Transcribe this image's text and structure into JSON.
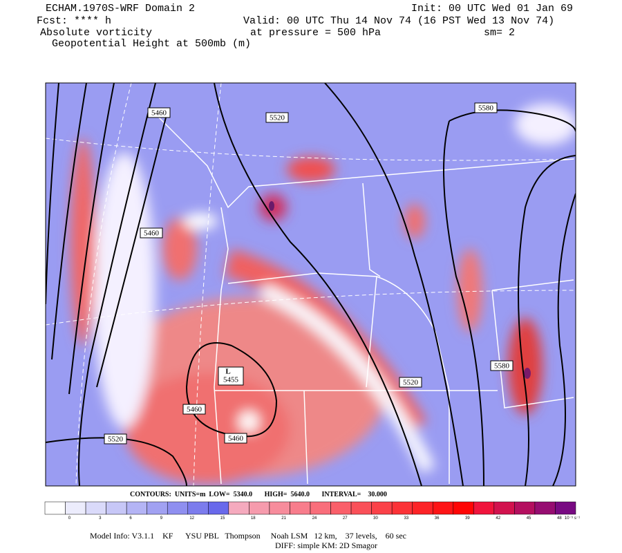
{
  "header": {
    "model": "ECHAM.1970S-WRF Domain 2",
    "init": "Init: 00 UTC Wed 01 Jan 69",
    "fcst": "Fcst: **** h",
    "valid": "Valid: 00 UTC Thu 14 Nov 74 (16 PST Wed 13 Nov 74)",
    "field": "Absolute vorticity",
    "pressure": "at pressure =  500 hPa",
    "smooth": "sm= 2",
    "contour_field": "Geopotential Height at 500mb (m)"
  },
  "map": {
    "contour_labels": [
      "5460",
      "5520",
      "5580",
      "5460",
      "5460",
      "5460",
      "5520",
      "5520",
      "5580"
    ],
    "low_marker": "L",
    "low_value": "5455"
  },
  "contours_info": "CONTOURS:  UNITS=m  LOW=  5340.0       HIGH=  5640.0       INTERVAL=    30.000",
  "colorbar": {
    "labels": [
      "0",
      "3",
      "6",
      "9",
      "12",
      "15",
      "18",
      "21",
      "24",
      "27",
      "30",
      "33",
      "36",
      "39",
      "42",
      "45",
      "48",
      "10⁻⁵ s⁻¹"
    ]
  },
  "footer": {
    "model_info": "Model Info: V3.1.1    KF      YSU PBL   Thompson     Noah LSM   12 km,    37 levels,    60 sec",
    "diff": "DIFF: simple KM: 2D Smagor"
  }
}
